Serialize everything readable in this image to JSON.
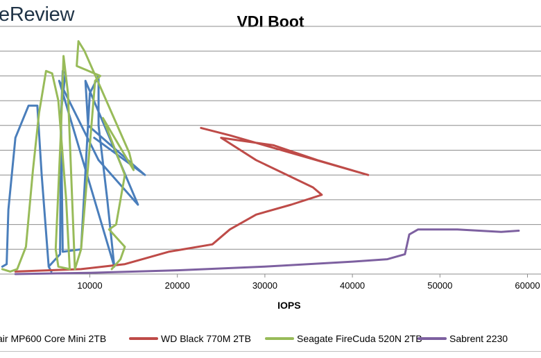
{
  "header": {
    "logo_text": "eReview"
  },
  "chart_data": {
    "type": "line",
    "title": "VDI Boot",
    "xlabel": "IOPS",
    "ylabel": "",
    "xlim": [
      0,
      60000
    ],
    "ylim": [
      0,
      10
    ],
    "xticks": [
      10000,
      20000,
      30000,
      40000,
      50000,
      60000
    ],
    "xtick_labels": [
      "10000",
      "20000",
      "30000",
      "40000",
      "50000",
      "60000"
    ],
    "grid": true,
    "legend_position": "bottom",
    "series": [
      {
        "name": "air MP600 Core Mini 2TB",
        "color": "#4a7ebb",
        "points": [
          [
            0,
            0.3
          ],
          [
            500,
            0.4
          ],
          [
            700,
            2.6
          ],
          [
            1500,
            5.5
          ],
          [
            3000,
            6.8
          ],
          [
            4000,
            6.8
          ],
          [
            4500,
            4.0
          ],
          [
            5300,
            0.3
          ],
          [
            5600,
            0.1
          ],
          [
            5300,
            0.3
          ],
          [
            6600,
            0.8
          ],
          [
            6700,
            6.2
          ],
          [
            6900,
            8.2
          ],
          [
            7200,
            8.1
          ],
          [
            6700,
            6.5
          ],
          [
            6900,
            0.9
          ],
          [
            9000,
            1.0
          ],
          [
            10000,
            7.3
          ],
          [
            11000,
            8.0
          ],
          [
            11000,
            6.0
          ],
          [
            12000,
            3.0
          ],
          [
            12800,
            0.3
          ],
          [
            6500,
            7.8
          ],
          [
            11000,
            4.6
          ],
          [
            15500,
            2.8
          ],
          [
            9500,
            7.8
          ],
          [
            9800,
            6.0
          ],
          [
            16300,
            4.0
          ],
          [
            10500,
            5.5
          ]
        ]
      },
      {
        "name": "WD Black 770M 2TB",
        "color": "#be4b48",
        "points": [
          [
            1500,
            0.1
          ],
          [
            9000,
            0.2
          ],
          [
            14000,
            0.4
          ],
          [
            19000,
            0.9
          ],
          [
            24000,
            1.2
          ],
          [
            26000,
            1.8
          ],
          [
            29000,
            2.4
          ],
          [
            33000,
            2.8
          ],
          [
            36500,
            3.2
          ],
          [
            35500,
            3.5
          ],
          [
            29000,
            4.6
          ],
          [
            25000,
            5.5
          ],
          [
            31000,
            5.2
          ],
          [
            36000,
            4.6
          ],
          [
            41800,
            4.0
          ],
          [
            26000,
            5.6
          ],
          [
            22700,
            5.9
          ]
        ]
      },
      {
        "name": "Seagate FireCuda 520N 2TB",
        "color": "#98bb59",
        "points": [
          [
            0,
            0.2
          ],
          [
            900,
            0.1
          ],
          [
            1700,
            0.2
          ],
          [
            2700,
            1.1
          ],
          [
            3500,
            4.2
          ],
          [
            4200,
            6.5
          ],
          [
            5000,
            8.2
          ],
          [
            5700,
            8.1
          ],
          [
            6400,
            7.0
          ],
          [
            7300,
            3.0
          ],
          [
            7700,
            0.2
          ],
          [
            6400,
            0.3
          ],
          [
            6100,
            1.0
          ],
          [
            6700,
            5.8
          ],
          [
            7000,
            8.8
          ],
          [
            7500,
            7.3
          ],
          [
            8300,
            0.2
          ],
          [
            9000,
            1.0
          ],
          [
            10000,
            5.2
          ],
          [
            10600,
            7.8
          ],
          [
            11200,
            8.0
          ],
          [
            8500,
            8.4
          ],
          [
            8700,
            9.4
          ],
          [
            9400,
            9.0
          ],
          [
            14500,
            4.9
          ],
          [
            15000,
            4.2
          ],
          [
            11500,
            6.3
          ],
          [
            14000,
            4.0
          ],
          [
            13000,
            2.0
          ],
          [
            12200,
            1.8
          ],
          [
            14000,
            1.1
          ],
          [
            13500,
            0.6
          ],
          [
            12500,
            0.2
          ]
        ]
      },
      {
        "name": "Sabrent 2230",
        "color": "#7d60a0",
        "points": [
          [
            1500,
            0.0
          ],
          [
            10000,
            0.05
          ],
          [
            20000,
            0.15
          ],
          [
            30000,
            0.3
          ],
          [
            40000,
            0.5
          ],
          [
            44000,
            0.6
          ],
          [
            46000,
            0.8
          ],
          [
            46500,
            1.6
          ],
          [
            47500,
            1.8
          ],
          [
            52000,
            1.8
          ],
          [
            57000,
            1.7
          ],
          [
            59000,
            1.75
          ]
        ]
      }
    ]
  }
}
